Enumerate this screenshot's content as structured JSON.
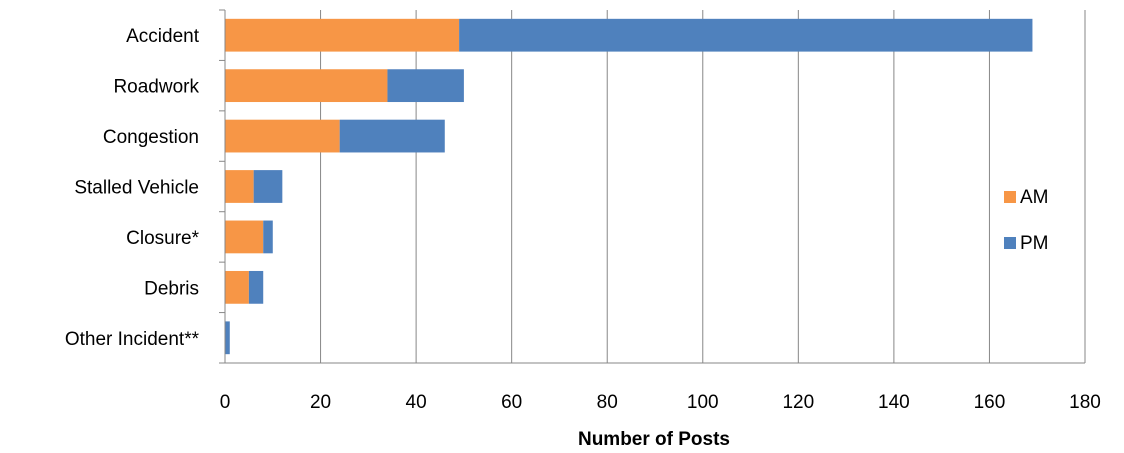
{
  "chart_data": {
    "type": "bar",
    "orientation": "horizontal",
    "stacked": true,
    "title": "",
    "xlabel": "Number of Posts",
    "ylabel": "",
    "categories": [
      "Accident",
      "Roadwork",
      "Congestion",
      "Stalled Vehicle",
      "Closure*",
      "Debris",
      "Other Incident**"
    ],
    "series": [
      {
        "name": "AM",
        "color": "#F79646",
        "values": [
          49,
          34,
          24,
          6,
          8,
          5,
          0
        ]
      },
      {
        "name": "PM",
        "color": "#4F81BD",
        "values": [
          120,
          16,
          22,
          6,
          2,
          3,
          1
        ]
      }
    ],
    "xlim": [
      0,
      180
    ],
    "xticks": [
      0,
      20,
      40,
      60,
      80,
      100,
      120,
      140,
      160,
      180
    ],
    "grid": "vertical",
    "legend": "right"
  }
}
